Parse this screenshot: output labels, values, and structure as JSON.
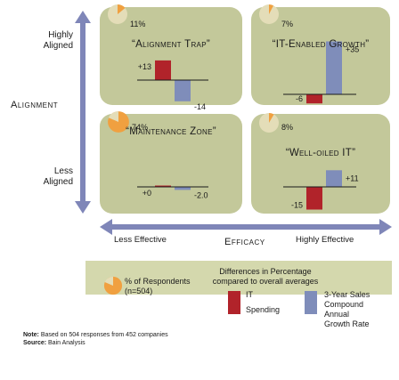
{
  "axes": {
    "y_title": "Alignment",
    "y_top": [
      "Highly",
      "Aligned"
    ],
    "y_bottom": [
      "Less",
      "Aligned"
    ],
    "x_title": "Efficacy",
    "x_left": "Less Effective",
    "x_right": "Highly Effective"
  },
  "colors": {
    "quadrant_bg": "#c3c89a",
    "it_spending": "#b1232a",
    "sales_growth": "#7f8dba",
    "arrow": "#7f86b8",
    "legend_bg": "#d4d8ad",
    "pie_orange": "#f0a040"
  },
  "chart_data": {
    "type": "bar",
    "series": [
      {
        "name": "IT Spending",
        "color": "#b1232a"
      },
      {
        "name": "3-Year Sales Compound Annual Growth Rate",
        "color": "#7f8dba"
      }
    ],
    "quadrants": [
      {
        "id": "alignment-trap",
        "title": "“Alignment Trap”",
        "percent": 11,
        "percent_label": "11%",
        "it_spending": 13,
        "it_label": "+13",
        "sales_growth": -14,
        "sales_label": "-14"
      },
      {
        "id": "it-enabled-growth",
        "title": "“IT-Enabled Growth”",
        "percent": 7,
        "percent_label": "7%",
        "it_spending": -6,
        "it_label": "-6",
        "sales_growth": 35,
        "sales_label": "+35"
      },
      {
        "id": "maintenance-zone",
        "title": "“Maintenance Zone”",
        "percent": 74,
        "percent_label": "74%",
        "it_spending": 0,
        "it_label": "+0",
        "sales_growth": -2.0,
        "sales_label": "-2.0"
      },
      {
        "id": "well-oiled-it",
        "title": "“Well-oiled IT”",
        "percent": 8,
        "percent_label": "8%",
        "it_spending": -15,
        "it_label": "-15",
        "sales_growth": 11,
        "sales_label": "+11"
      }
    ]
  },
  "legend": {
    "respondents_label": "% of Respondents",
    "respondents_n": "(n=504)",
    "diff_title_1": "Differences in Percentage",
    "diff_title_2": "compared to overall averages",
    "it_label_1": "IT",
    "it_label_2": "Spending",
    "sales_label_1": "3-Year Sales",
    "sales_label_2": "Compound",
    "sales_label_3": "Annual",
    "sales_label_4": "Growth Rate"
  },
  "note": {
    "note_bold": "Note:",
    "note_text": " Based on 504 responses from 452 companies",
    "source_bold": "Source:",
    "source_text": " Bain Analysis"
  }
}
